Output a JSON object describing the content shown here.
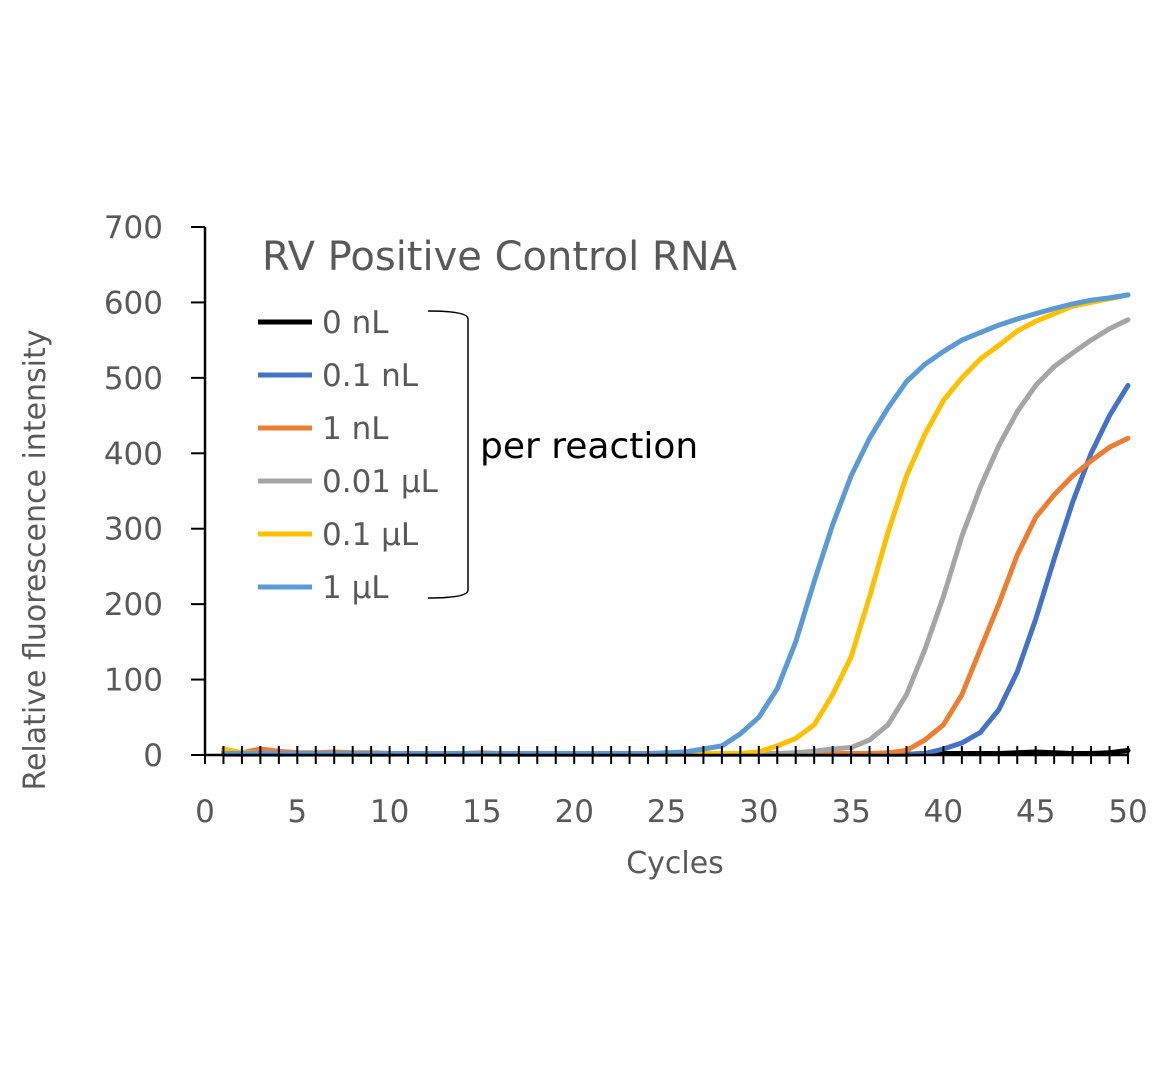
{
  "chart_data": {
    "type": "line",
    "title": "RV Positive Control RNA",
    "xlabel": "Cycles",
    "ylabel": "Relative fluorescence intensity",
    "xlim": [
      0,
      50
    ],
    "ylim": [
      0,
      700
    ],
    "xticks": [
      0,
      5,
      10,
      15,
      20,
      25,
      30,
      35,
      40,
      45,
      50
    ],
    "yticks": [
      0,
      100,
      200,
      300,
      400,
      500,
      600,
      700
    ],
    "grid": false,
    "legend_position": "top-left",
    "annotation": "per reaction",
    "x": [
      1,
      2,
      3,
      4,
      5,
      6,
      7,
      8,
      9,
      10,
      11,
      12,
      13,
      14,
      15,
      16,
      17,
      18,
      19,
      20,
      21,
      22,
      23,
      24,
      25,
      26,
      27,
      28,
      29,
      30,
      31,
      32,
      33,
      34,
      35,
      36,
      37,
      38,
      39,
      40,
      41,
      42,
      43,
      44,
      45,
      46,
      47,
      48,
      49,
      50
    ],
    "series": [
      {
        "name": "0 nL",
        "color": "#000000",
        "values": [
          2,
          1,
          2,
          1,
          2,
          2,
          1,
          1,
          1,
          1,
          2,
          1,
          1,
          1,
          2,
          1,
          1,
          1,
          1,
          1,
          1,
          1,
          1,
          1,
          1,
          1,
          1,
          1,
          1,
          1,
          1,
          1,
          1,
          1,
          1,
          1,
          1,
          1,
          2,
          2,
          2,
          2,
          2,
          3,
          4,
          3,
          2,
          2,
          3,
          6
        ]
      },
      {
        "name": "0.1 nL",
        "color": "#4472C4",
        "values": [
          1,
          1,
          1,
          1,
          1,
          1,
          1,
          1,
          1,
          1,
          1,
          1,
          1,
          1,
          1,
          1,
          1,
          1,
          1,
          1,
          1,
          1,
          1,
          1,
          1,
          1,
          1,
          1,
          1,
          1,
          1,
          1,
          1,
          1,
          1,
          1,
          1,
          1,
          2,
          8,
          16,
          30,
          60,
          110,
          180,
          260,
          335,
          400,
          450,
          490
        ]
      },
      {
        "name": "1 nL",
        "color": "#ED7D31",
        "values": [
          4,
          3,
          8,
          5,
          3,
          3,
          4,
          3,
          3,
          2,
          2,
          2,
          2,
          2,
          3,
          2,
          2,
          2,
          2,
          2,
          2,
          2,
          2,
          2,
          2,
          2,
          2,
          2,
          2,
          2,
          2,
          2,
          2,
          2,
          2,
          2,
          3,
          6,
          20,
          40,
          80,
          140,
          200,
          265,
          315,
          345,
          370,
          390,
          408,
          420
        ]
      },
      {
        "name": "0.01 µL",
        "color": "#A5A5A5",
        "values": [
          2,
          2,
          2,
          2,
          2,
          2,
          2,
          2,
          2,
          2,
          2,
          2,
          2,
          2,
          2,
          2,
          2,
          2,
          2,
          2,
          2,
          2,
          2,
          2,
          2,
          2,
          2,
          2,
          2,
          2,
          2,
          3,
          5,
          8,
          10,
          20,
          40,
          80,
          140,
          210,
          290,
          355,
          410,
          455,
          490,
          515,
          533,
          550,
          565,
          577
        ]
      },
      {
        "name": "0.1 µL",
        "color": "#FFC000",
        "values": [
          8,
          3,
          2,
          2,
          2,
          2,
          2,
          2,
          2,
          2,
          2,
          2,
          2,
          2,
          2,
          2,
          2,
          2,
          2,
          2,
          2,
          2,
          2,
          2,
          2,
          2,
          2,
          2,
          2,
          4,
          12,
          22,
          40,
          80,
          130,
          210,
          295,
          370,
          425,
          470,
          500,
          525,
          543,
          562,
          575,
          585,
          595,
          600,
          605,
          610
        ]
      },
      {
        "name": "1 µL",
        "color": "#5B9BD5",
        "values": [
          2,
          2,
          2,
          2,
          2,
          2,
          2,
          2,
          2,
          2,
          2,
          2,
          2,
          2,
          2,
          2,
          2,
          2,
          2,
          2,
          2,
          2,
          2,
          2,
          3,
          4,
          8,
          12,
          28,
          50,
          88,
          150,
          230,
          305,
          370,
          420,
          460,
          495,
          518,
          535,
          550,
          560,
          570,
          578,
          585,
          592,
          598,
          603,
          606,
          610
        ]
      }
    ]
  }
}
